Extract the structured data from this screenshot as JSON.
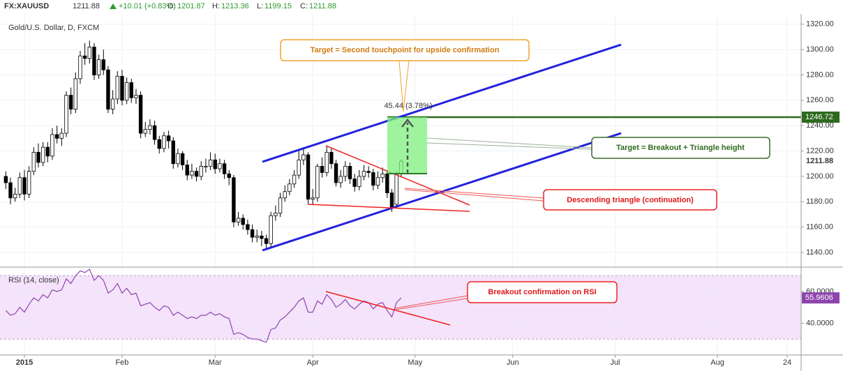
{
  "header": {
    "symbol": "FX:XAUUSD",
    "change": "+10.01 (+0.83%)",
    "ohlc_labels": [
      "O:",
      "H:",
      "L:",
      "C:"
    ]
  },
  "chart_data": [
    {
      "type": "candlestick",
      "title": "Gold/U.S. Dollar, D, FXCM",
      "up_color": "#ffffff",
      "down_color": "#000000",
      "open": [
        1200,
        1195,
        1183,
        1186,
        1199,
        1186,
        1204,
        1219,
        1211,
        1223,
        1216,
        1233,
        1230,
        1234,
        1264,
        1253,
        1277,
        1295,
        1293,
        1302,
        1280,
        1292,
        1284,
        1253,
        1261,
        1279,
        1260,
        1274,
        1262,
        1264,
        1234,
        1237,
        1240,
        1229,
        1222,
        1232,
        1228,
        1210,
        1218,
        1209,
        1201,
        1204,
        1200,
        1208,
        1208,
        1213,
        1206,
        1210,
        1202,
        1199,
        1164,
        1167,
        1162,
        1158,
        1152,
        1153,
        1151,
        1147,
        1169,
        1171,
        1183,
        1188,
        1194,
        1201,
        1213,
        1217,
        1182,
        1183,
        1208,
        1203,
        1219,
        1210,
        1195,
        1200,
        1208,
        1198,
        1192,
        1200,
        1204,
        1203,
        1193,
        1199,
        1202,
        1187,
        1178,
        1201.87
      ],
      "high": [
        1204,
        1199,
        1191,
        1203,
        1205,
        1208,
        1223,
        1226,
        1227,
        1227,
        1238,
        1240,
        1238,
        1267,
        1270,
        1282,
        1299,
        1305,
        1307,
        1305,
        1296,
        1300,
        1287,
        1268,
        1283,
        1284,
        1278,
        1277,
        1269,
        1267,
        1243,
        1245,
        1244,
        1232,
        1235,
        1236,
        1231,
        1222,
        1220,
        1213,
        1210,
        1207,
        1212,
        1214,
        1219,
        1218,
        1214,
        1213,
        1205,
        1201,
        1172,
        1170,
        1166,
        1162,
        1158,
        1157,
        1154,
        1172,
        1177,
        1187,
        1193,
        1198,
        1205,
        1220,
        1223,
        1219,
        1190,
        1210,
        1215,
        1224,
        1222,
        1213,
        1205,
        1212,
        1211,
        1202,
        1205,
        1209,
        1208,
        1206,
        1204,
        1207,
        1205,
        1190,
        1204,
        1213.36
      ],
      "low": [
        1190,
        1178,
        1180,
        1183,
        1181,
        1183,
        1201,
        1207,
        1208,
        1211,
        1213,
        1226,
        1224,
        1231,
        1249,
        1250,
        1273,
        1288,
        1289,
        1276,
        1277,
        1280,
        1250,
        1249,
        1257,
        1256,
        1257,
        1258,
        1257,
        1230,
        1231,
        1233,
        1225,
        1218,
        1219,
        1222,
        1206,
        1207,
        1205,
        1197,
        1198,
        1196,
        1197,
        1203,
        1205,
        1202,
        1203,
        1198,
        1193,
        1160,
        1161,
        1158,
        1154,
        1148,
        1148,
        1145,
        1142,
        1144,
        1165,
        1168,
        1180,
        1185,
        1191,
        1198,
        1209,
        1178,
        1178,
        1180,
        1199,
        1200,
        1206,
        1192,
        1191,
        1196,
        1194,
        1188,
        1189,
        1197,
        1199,
        1189,
        1190,
        1195,
        1183,
        1172,
        1176,
        1199.15
      ],
      "close": [
        1195,
        1183,
        1186,
        1199,
        1186,
        1204,
        1219,
        1211,
        1223,
        1216,
        1233,
        1230,
        1234,
        1264,
        1253,
        1277,
        1295,
        1293,
        1302,
        1280,
        1292,
        1284,
        1253,
        1261,
        1279,
        1260,
        1274,
        1262,
        1264,
        1234,
        1237,
        1240,
        1229,
        1222,
        1232,
        1228,
        1210,
        1218,
        1209,
        1201,
        1204,
        1200,
        1208,
        1208,
        1213,
        1206,
        1210,
        1202,
        1199,
        1164,
        1167,
        1162,
        1158,
        1152,
        1153,
        1151,
        1147,
        1169,
        1171,
        1183,
        1188,
        1194,
        1201,
        1213,
        1217,
        1182,
        1183,
        1208,
        1203,
        1219,
        1210,
        1195,
        1200,
        1208,
        1198,
        1192,
        1200,
        1204,
        1203,
        1193,
        1199,
        1202,
        1187,
        1175,
        1201.87,
        1211.88
      ],
      "xlim": [
        -1.25,
        171
      ],
      "xticks": [
        {
          "value": 4,
          "label": "2015"
        },
        {
          "value": 25,
          "label": "Feb"
        },
        {
          "value": 45,
          "label": "Mar"
        },
        {
          "value": 66,
          "label": "Apr"
        },
        {
          "value": 88,
          "label": "May"
        },
        {
          "value": 109,
          "label": "Jun"
        },
        {
          "value": 131,
          "label": "Jul"
        },
        {
          "value": 153,
          "label": "Aug"
        },
        {
          "value": 168,
          "label": "24"
        }
      ],
      "ylim": [
        1129,
        1327
      ],
      "yticks": [
        {
          "value": 1140,
          "label": "1140.00"
        },
        {
          "value": 1160,
          "label": "1160.00"
        },
        {
          "value": 1180,
          "label": "1180.00"
        },
        {
          "value": 1200,
          "label": "1200.00"
        },
        {
          "value": 1220,
          "label": "1220.00"
        },
        {
          "value": 1240,
          "label": "1240.00"
        },
        {
          "value": 1260,
          "label": "1260.00"
        },
        {
          "value": 1280,
          "label": "1280.00"
        },
        {
          "value": 1300,
          "label": "1300.00"
        },
        {
          "value": 1320,
          "label": "1320.00"
        }
      ],
      "target_level": 1246.72,
      "measure_label": "45.44 (3.78%)",
      "annotations": [
        "Target = Second touchpoint for upside confirmation",
        "Target = Breakout + Triangle height",
        "Descending triangle (continuation)"
      ]
    },
    {
      "type": "line",
      "title": "RSI (14, close)",
      "color": "#8e44ad",
      "band": [
        30,
        70
      ],
      "values": [
        48,
        45,
        46,
        50,
        47,
        52,
        56,
        54,
        58,
        56,
        61,
        60,
        61,
        68,
        65,
        70,
        73,
        72,
        74,
        67,
        70,
        67,
        59,
        61,
        65,
        59,
        62,
        58,
        59,
        51,
        52,
        53,
        50,
        48,
        51,
        50,
        45,
        47,
        45,
        43,
        44,
        43,
        45,
        45,
        47,
        45,
        46,
        44,
        43,
        33,
        34,
        33,
        31,
        30,
        30,
        29,
        28,
        36,
        37,
        42,
        44,
        47,
        50,
        54,
        56,
        47,
        47,
        54,
        52,
        58,
        55,
        50,
        52,
        55,
        51,
        49,
        52,
        54,
        53,
        49,
        52,
        53,
        48,
        44,
        53,
        55.9606
      ],
      "ylim": [
        20,
        74.5
      ],
      "yticks": [
        {
          "value": 40,
          "label": "40.0000"
        },
        {
          "value": 60,
          "label": "60.0000"
        }
      ],
      "annotations": [
        "Breakout confirmation on RSI"
      ]
    }
  ]
}
